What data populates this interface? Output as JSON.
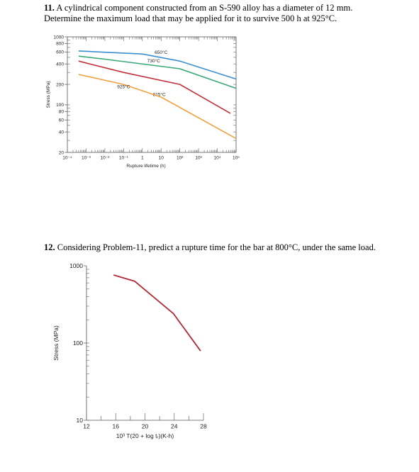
{
  "problem11": {
    "number": "11.",
    "line1": "A cylindrical component constructed from an S-590 alloy has a diameter of 12 mm.",
    "line2": "Determine the maximum load that may be applied for it to survive 500 h at 925°C."
  },
  "problem12": {
    "number": "12.",
    "text": "Considering Problem-11, predict a rupture time for the bar at 800°C, under the same load."
  },
  "chart_data": [
    {
      "type": "line",
      "title": "",
      "xlabel": "Rupture lifetime (h)",
      "ylabel": "Stress (MPa)",
      "x_scale": "log",
      "y_scale": "log",
      "xlim": [
        0.0001,
        100000
      ],
      "ylim": [
        20,
        1000
      ],
      "x_ticks": [
        {
          "v": 0.0001,
          "label": "10⁻⁴"
        },
        {
          "v": 0.001,
          "label": "10⁻³"
        },
        {
          "v": 0.01,
          "label": "10⁻²"
        },
        {
          "v": 0.1,
          "label": "10⁻¹"
        },
        {
          "v": 1,
          "label": "1"
        },
        {
          "v": 10,
          "label": "10"
        },
        {
          "v": 100,
          "label": "10²"
        },
        {
          "v": 1000,
          "label": "10³"
        },
        {
          "v": 10000,
          "label": "10⁴"
        },
        {
          "v": 100000,
          "label": "10⁵"
        }
      ],
      "y_ticks": [
        {
          "v": 1000,
          "label": "1000"
        },
        {
          "v": 800,
          "label": "800"
        },
        {
          "v": 600,
          "label": "600"
        },
        {
          "v": 400,
          "label": "400"
        },
        {
          "v": 200,
          "label": "200"
        },
        {
          "v": 100,
          "label": "100"
        },
        {
          "v": 80,
          "label": "80"
        },
        {
          "v": 60,
          "label": "60"
        },
        {
          "v": 40,
          "label": "40"
        },
        {
          "v": 20,
          "label": "20"
        }
      ],
      "series": [
        {
          "name": "650°C",
          "color": "#3a8fd0",
          "label_at": [
            10,
            560
          ],
          "points": [
            [
              0.0004,
              620
            ],
            [
              1,
              560
            ],
            [
              100,
              440
            ],
            [
              100000,
              240
            ]
          ]
        },
        {
          "name": "730°C",
          "color": "#3aa878",
          "label_at": [
            4,
            420
          ],
          "points": [
            [
              0.0004,
              520
            ],
            [
              0.01,
              470
            ],
            [
              100,
              340
            ],
            [
              100000,
              175
            ]
          ]
        },
        {
          "name": "815°C",
          "color": "#c0303a",
          "label_at": [
            8,
            135
          ],
          "points": [
            [
              0.0004,
              440
            ],
            [
              0.1,
              300
            ],
            [
              100,
              200
            ],
            [
              50000,
              75
            ]
          ]
        },
        {
          "name": "925°C",
          "color": "#f0a040",
          "label_at": [
            0.1,
            175
          ],
          "points": [
            [
              0.0004,
              280
            ],
            [
              0.1,
              200
            ],
            [
              10,
              130
            ],
            [
              100000,
              32
            ]
          ]
        }
      ]
    },
    {
      "type": "line",
      "title": "",
      "xlabel": "10³ T(20 + log tᵣ)(K-h)",
      "ylabel": "Stress (MPa)",
      "x_scale": "linear",
      "y_scale": "log",
      "xlim": [
        12,
        28
      ],
      "ylim": [
        10,
        1000
      ],
      "x_ticks": [
        {
          "v": 12,
          "label": "12"
        },
        {
          "v": 16,
          "label": "16"
        },
        {
          "v": 20,
          "label": "20"
        },
        {
          "v": 24,
          "label": "24"
        },
        {
          "v": 28,
          "label": "28"
        }
      ],
      "y_ticks": [
        {
          "v": 1000,
          "label": "1000"
        },
        {
          "v": 100,
          "label": "100"
        },
        {
          "v": 10,
          "label": "10"
        }
      ],
      "series": [
        {
          "color": "#b02a35",
          "points": [
            [
              15.7,
              760
            ],
            [
              18.6,
              630
            ],
            [
              23.9,
              240
            ],
            [
              27.6,
              79
            ]
          ]
        }
      ]
    }
  ]
}
